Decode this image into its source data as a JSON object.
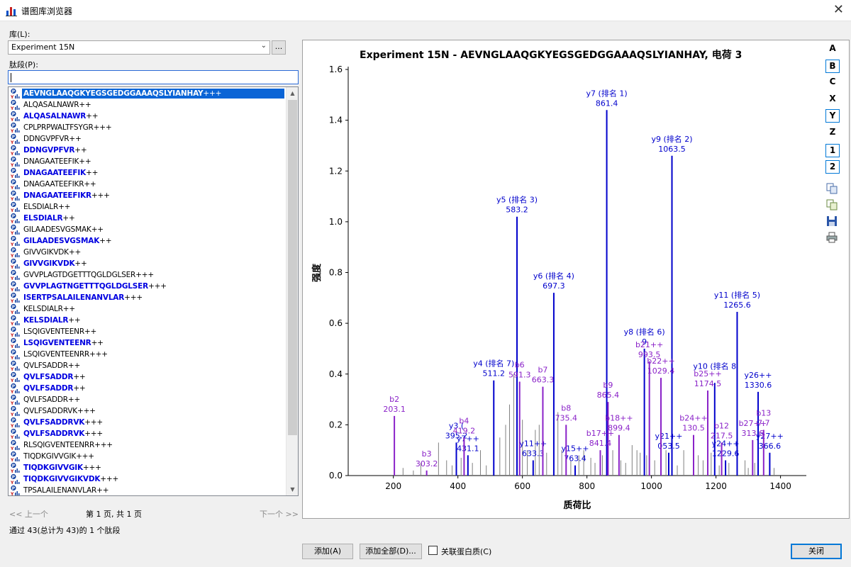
{
  "window": {
    "title": "谱图库浏览器",
    "close_glyph": "✕"
  },
  "library": {
    "label": "库(L):",
    "value": "Experiment 15N",
    "more_button": "..."
  },
  "peptide_filter": {
    "label": "肽段(P):",
    "value": ""
  },
  "peptides": [
    {
      "seq": "AEVNGLAAQGKYEGSGEDGGAAAQSLYIANHAY",
      "charge": "+++",
      "bold": true,
      "selected": true
    },
    {
      "seq": "ALQASALNAWR",
      "charge": "++",
      "bold": false
    },
    {
      "seq": "ALQASALNAWR",
      "charge": "++",
      "bold": true
    },
    {
      "seq": "CPLPRPWALTFSYGR",
      "charge": "+++",
      "bold": false
    },
    {
      "seq": "DDNGVPFVR",
      "charge": "++",
      "bold": false
    },
    {
      "seq": "DDNGVPFVR",
      "charge": "++",
      "bold": true
    },
    {
      "seq": "DNAGAATEEFIK",
      "charge": "++",
      "bold": false
    },
    {
      "seq": "DNAGAATEEFIK",
      "charge": "++",
      "bold": true
    },
    {
      "seq": "DNAGAATEEFIKR",
      "charge": "++",
      "bold": false
    },
    {
      "seq": "DNAGAATEEFIKR",
      "charge": "+++",
      "bold": true
    },
    {
      "seq": "ELSDIALR",
      "charge": "++",
      "bold": false
    },
    {
      "seq": "ELSDIALR",
      "charge": "++",
      "bold": true
    },
    {
      "seq": "GILAADESVGSMAK",
      "charge": "++",
      "bold": false
    },
    {
      "seq": "GILAADESVGSMAK",
      "charge": "++",
      "bold": true
    },
    {
      "seq": "GIVVGIKVDK",
      "charge": "++",
      "bold": false
    },
    {
      "seq": "GIVVGIKVDK",
      "charge": "++",
      "bold": true
    },
    {
      "seq": "GVVPLAGTDGETTTQGLDGLSER",
      "charge": "+++",
      "bold": false
    },
    {
      "seq": "GVVPLAGTNGETTTQGLDGLSER",
      "charge": "+++",
      "bold": true
    },
    {
      "seq": "ISERTPSALAILENANVLAR",
      "charge": "+++",
      "bold": true
    },
    {
      "seq": "KELSDIALR",
      "charge": "++",
      "bold": false
    },
    {
      "seq": "KELSDIALR",
      "charge": "++",
      "bold": true
    },
    {
      "seq": "LSQIGVENTEENR",
      "charge": "++",
      "bold": false
    },
    {
      "seq": "LSQIGVENTEENR",
      "charge": "++",
      "bold": true
    },
    {
      "seq": "LSQIGVENTEENRR",
      "charge": "+++",
      "bold": false
    },
    {
      "seq": "QVLFSADDR",
      "charge": "++",
      "bold": false
    },
    {
      "seq": "QVLFSADDR",
      "charge": "++",
      "bold": true
    },
    {
      "seq": "QVLFSADDR",
      "charge": "++",
      "bold": true
    },
    {
      "seq": "QVLFSADDR",
      "charge": "++",
      "bold": false
    },
    {
      "seq": "QVLFSADDRVK",
      "charge": "+++",
      "bold": false
    },
    {
      "seq": "QVLFSADDRVK",
      "charge": "+++",
      "bold": true
    },
    {
      "seq": "QVLFSADDRVK",
      "charge": "+++",
      "bold": true
    },
    {
      "seq": "RLSQIGVENTEENRR",
      "charge": "+++",
      "bold": false
    },
    {
      "seq": "TIQDKGIVVGIK",
      "charge": "+++",
      "bold": false
    },
    {
      "seq": "TIQDKGIVVGIK",
      "charge": "+++",
      "bold": true
    },
    {
      "seq": "TIQDKGIVVGIKVDK",
      "charge": "+++",
      "bold": true
    },
    {
      "seq": "TPSALAILENANVLAR",
      "charge": "++",
      "bold": false
    }
  ],
  "pager": {
    "prev": "<< 上一个",
    "info": "第 1 页, 共 1 页",
    "next": "下一个 >>"
  },
  "status_text": "通过 43(总计为 43)的 1 个肽段",
  "ion_buttons": [
    "A",
    "B",
    "C",
    "X",
    "Y",
    "Z"
  ],
  "charge_buttons": [
    "1",
    "2"
  ],
  "tool_icons": [
    "copy-icon",
    "copy-data-icon",
    "save-icon",
    "print-icon"
  ],
  "buttons": {
    "add": "添加(A)",
    "add_all": "添加全部(D)...",
    "close": "关闭"
  },
  "associate_protein": {
    "label": "关联蛋白质(C)",
    "checked": false
  },
  "chart_data": {
    "type": "bar",
    "title": "Experiment  15N  -  AEVNGLAAQGKYEGSGEDGGAAAQSLYIANHAY, 电荷 3",
    "xlabel": "质荷比",
    "ylabel": "强度",
    "xlim": [
      60,
      1480
    ],
    "ylim": [
      0,
      1.6
    ],
    "xticks": [
      200,
      400,
      600,
      800,
      1000,
      1200,
      1400
    ],
    "yticks": [
      0.0,
      0.2,
      0.4,
      0.6,
      0.8,
      1.0,
      1.2,
      1.4,
      1.6
    ],
    "colors": {
      "y_ion": "#0000cc",
      "b_ion": "#8a22c8",
      "noise": "#808080"
    },
    "annotated_peaks": [
      {
        "mz": 861.4,
        "intensity": 1.44,
        "ion": "y",
        "label": "y7 (排名 1)",
        "value": "861.4"
      },
      {
        "mz": 1063.5,
        "intensity": 1.26,
        "ion": "y",
        "label": "y9 (排名 2)",
        "value": "1063.5"
      },
      {
        "mz": 583.2,
        "intensity": 1.02,
        "ion": "y",
        "label": "y5 (排名 3)",
        "value": "583.2"
      },
      {
        "mz": 697.3,
        "intensity": 0.72,
        "ion": "y",
        "label": "y6 (排名 4)",
        "value": "697.3"
      },
      {
        "mz": 1265.6,
        "intensity": 0.645,
        "ion": "y",
        "label": "y11 (排名 5)",
        "value": "1265.6"
      },
      {
        "mz": 978.0,
        "intensity": 0.5,
        "ion": "y",
        "label": "y8 (排名 6)",
        "value": "9"
      },
      {
        "mz": 511.2,
        "intensity": 0.375,
        "ion": "y",
        "label": "y4 (排名 7)",
        "value": "511.2"
      },
      {
        "mz": 1196.0,
        "intensity": 0.365,
        "ion": "y",
        "label": "y10 (排名 8",
        "value": ""
      },
      {
        "mz": 1330.6,
        "intensity": 0.33,
        "ion": "y",
        "label": "y26++",
        "value": "1330.6"
      },
      {
        "mz": 395.2,
        "intensity": 0.13,
        "ion": "y",
        "label": "y3 (",
        "value": "395.2"
      },
      {
        "mz": 431.1,
        "intensity": 0.08,
        "ion": "y",
        "label": "y7++",
        "value": "431.1"
      },
      {
        "mz": 633.3,
        "intensity": 0.06,
        "ion": "y",
        "label": "y11++",
        "value": "633.3"
      },
      {
        "mz": 763.4,
        "intensity": 0.04,
        "ion": "y",
        "label": "y15++",
        "value": "763.4"
      },
      {
        "mz": 1053.5,
        "intensity": 0.09,
        "ion": "y",
        "label": "y21++",
        "value": "053.5"
      },
      {
        "mz": 1229.6,
        "intensity": 0.06,
        "ion": "y",
        "label": "y24++",
        "value": "1229.6"
      },
      {
        "mz": 1366.6,
        "intensity": 0.09,
        "ion": "y",
        "label": "y27++",
        "value": "366.6"
      },
      {
        "mz": 203.1,
        "intensity": 0.235,
        "ion": "b",
        "label": "b2",
        "value": "203.1"
      },
      {
        "mz": 303.2,
        "intensity": 0.02,
        "ion": "b",
        "label": "b3",
        "value": "303.2"
      },
      {
        "mz": 419.2,
        "intensity": 0.15,
        "ion": "b",
        "label": "b4",
        "value": "419.2"
      },
      {
        "mz": 591.3,
        "intensity": 0.37,
        "ion": "b",
        "label": "b6",
        "value": "591.3"
      },
      {
        "mz": 663.3,
        "intensity": 0.35,
        "ion": "b",
        "label": "b7",
        "value": "663.3"
      },
      {
        "mz": 735.4,
        "intensity": 0.2,
        "ion": "b",
        "label": "b8",
        "value": "735.4"
      },
      {
        "mz": 865.4,
        "intensity": 0.29,
        "ion": "b",
        "label": "b9",
        "value": "865.4"
      },
      {
        "mz": 993.5,
        "intensity": 0.45,
        "ion": "b",
        "label": "b21++",
        "value": "993.5"
      },
      {
        "mz": 1029.4,
        "intensity": 0.385,
        "ion": "b",
        "label": "b22++",
        "value": "1029.4"
      },
      {
        "mz": 1174.5,
        "intensity": 0.335,
        "ion": "b",
        "label": "b25++",
        "value": "1174.5"
      },
      {
        "mz": 899.4,
        "intensity": 0.16,
        "ion": "b",
        "label": "b18++",
        "value": "899.4"
      },
      {
        "mz": 841.4,
        "intensity": 0.1,
        "ion": "b",
        "label": "b17++",
        "value": "841.4"
      },
      {
        "mz": 1130.5,
        "intensity": 0.16,
        "ion": "b",
        "label": "b24++",
        "value": "130.5"
      },
      {
        "mz": 1217.5,
        "intensity": 0.13,
        "ion": "b",
        "label": "b12",
        "value": "217.5"
      },
      {
        "mz": 1313.6,
        "intensity": 0.14,
        "ion": "b",
        "label": "b27++",
        "value": "313.6"
      },
      {
        "mz": 1347.7,
        "intensity": 0.18,
        "ion": "b",
        "label": "b13",
        "value": "7.7"
      }
    ],
    "noise_peaks": [
      [
        230,
        0.03
      ],
      [
        262,
        0.02
      ],
      [
        285,
        0.05
      ],
      [
        340,
        0.13
      ],
      [
        365,
        0.06
      ],
      [
        382,
        0.04
      ],
      [
        410,
        0.07
      ],
      [
        445,
        0.05
      ],
      [
        470,
        0.1
      ],
      [
        488,
        0.04
      ],
      [
        530,
        0.15
      ],
      [
        548,
        0.2
      ],
      [
        560,
        0.28
      ],
      [
        573,
        0.4
      ],
      [
        600,
        0.22
      ],
      [
        615,
        0.1
      ],
      [
        640,
        0.18
      ],
      [
        652,
        0.2
      ],
      [
        675,
        0.09
      ],
      [
        710,
        0.25
      ],
      [
        722,
        0.1
      ],
      [
        750,
        0.06
      ],
      [
        775,
        0.08
      ],
      [
        790,
        0.1
      ],
      [
        812,
        0.07
      ],
      [
        825,
        0.05
      ],
      [
        848,
        0.08
      ],
      [
        880,
        0.1
      ],
      [
        905,
        0.06
      ],
      [
        920,
        0.05
      ],
      [
        940,
        0.12
      ],
      [
        955,
        0.1
      ],
      [
        965,
        0.09
      ],
      [
        985,
        0.08
      ],
      [
        1010,
        0.06
      ],
      [
        1045,
        0.1
      ],
      [
        1080,
        0.04
      ],
      [
        1100,
        0.1
      ],
      [
        1145,
        0.08
      ],
      [
        1160,
        0.06
      ],
      [
        1185,
        0.09
      ],
      [
        1210,
        0.04
      ],
      [
        1240,
        0.05
      ],
      [
        1290,
        0.06
      ],
      [
        1300,
        0.03
      ],
      [
        1320,
        0.05
      ],
      [
        1380,
        0.03
      ]
    ]
  }
}
